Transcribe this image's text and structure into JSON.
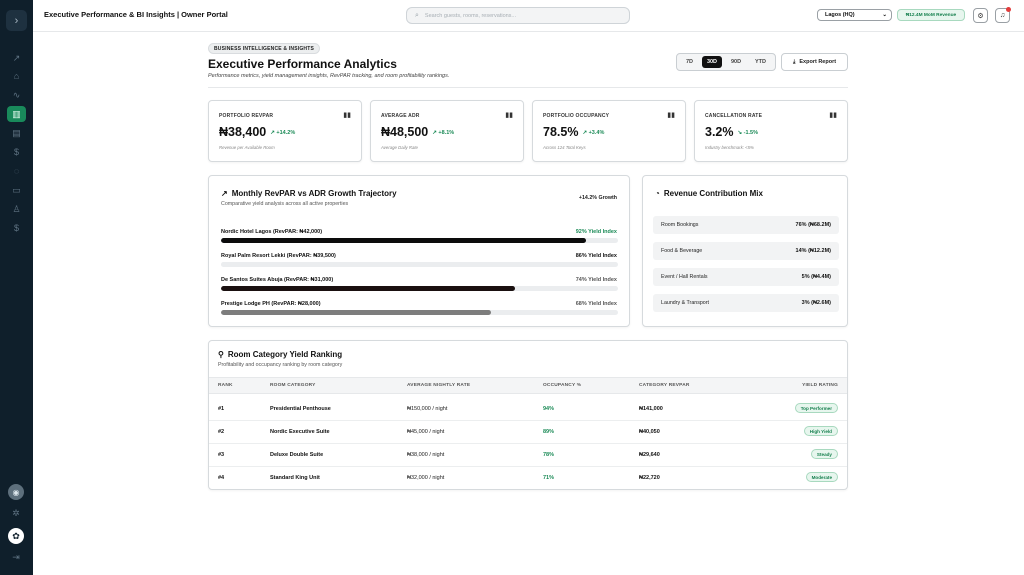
{
  "header": {
    "title": "Executive Performance & BI Insights | Owner Portal",
    "search_placeholder": "Search guests, rooms, reservations...",
    "location": "Lagos (HQ)",
    "revenue_badge": "₦12.4M MoM Revenue"
  },
  "page": {
    "tag": "BUSINESS INTELLIGENCE & INSIGHTS",
    "title": "Executive Performance Analytics",
    "subtitle": "Performance metrics, yield management insights, RevPAR tracking, and room profitability rankings.",
    "periods": [
      "7D",
      "30D",
      "90D",
      "YTD"
    ],
    "active_period": "30D",
    "export_label": "Export Report"
  },
  "kpis": [
    {
      "label": "PORTFOLIO REVPAR",
      "value": "₦38,400",
      "delta": "↗ +14.2%",
      "note": "Revenue per Available Room"
    },
    {
      "label": "AVERAGE ADR",
      "value": "₦48,500",
      "delta": "↗ +8.1%",
      "note": "Average Daily Rate"
    },
    {
      "label": "PORTFOLIO OCCUPANCY",
      "value": "78.5%",
      "delta": "↗ +3.4%",
      "note": "Across 124 Total Keys"
    },
    {
      "label": "CANCELLATION RATE",
      "value": "3.2%",
      "delta": "↘ -1.5%",
      "note": "Industry benchmark: <5%"
    }
  ],
  "trajectory": {
    "title": "Monthly RevPAR vs ADR Growth Trajectory",
    "subtitle": "Comparative yield analysis across all active properties",
    "growth": "+14.2% Growth",
    "rows": [
      {
        "label": "Nordic Hotel Lagos (RevPAR: ₦42,000)",
        "yield": "92% Yield Index",
        "fill": 0.92,
        "color": "#0c0c0c",
        "yield_color": "#1a8a56"
      },
      {
        "label": "Royal Palm Resort Lekki (RevPAR: ₦39,500)",
        "yield": "86% Yield Index",
        "fill": 0.86,
        "color": "#ebedef",
        "yield_color": "#111111"
      },
      {
        "label": "De Santos Suites Abuja (RevPAR: ₦31,000)",
        "yield": "74% Yield Index",
        "fill": 0.74,
        "color": "#1a1010",
        "yield_color": "#555555"
      },
      {
        "label": "Prestige Lodge PH (RevPAR: ₦28,000)",
        "yield": "68% Yield Index",
        "fill": 0.68,
        "color": "#7d7d7d",
        "yield_color": "#555555"
      }
    ]
  },
  "mix": {
    "title": "Revenue Contribution Mix",
    "rows": [
      {
        "label": "Room Bookings",
        "value": "76% (₦68.2M)"
      },
      {
        "label": "Food & Beverage",
        "value": "14% (₦12.2M)"
      },
      {
        "label": "Event / Hall Rentals",
        "value": "5% (₦4.4M)"
      },
      {
        "label": "Laundry & Transport",
        "value": "3% (₦2.6M)"
      }
    ]
  },
  "ranking": {
    "title": "Room Category Yield Ranking",
    "subtitle": "Profitability and occupancy ranking by room category",
    "columns": [
      "RANK",
      "ROOM CATEGORY",
      "AVERAGE NIGHTLY RATE",
      "OCCUPANCY %",
      "CATEGORY REVPAR",
      "YIELD RATING"
    ],
    "rows": [
      {
        "rank": "#1",
        "category": "Presidential Penthouse",
        "rate": "₦150,000 / night",
        "occupancy": "94%",
        "revpar": "₦141,000",
        "rating": "Top Performer"
      },
      {
        "rank": "#2",
        "category": "Nordic Executive Suite",
        "rate": "₦45,000 / night",
        "occupancy": "89%",
        "revpar": "₦40,050",
        "rating": "High Yield"
      },
      {
        "rank": "#3",
        "category": "Deluxe Double Suite",
        "rate": "₦38,000 / night",
        "occupancy": "78%",
        "revpar": "₦29,640",
        "rating": "Steady"
      },
      {
        "rank": "#4",
        "category": "Standard King Unit",
        "rate": "₦32,000 / night",
        "occupancy": "71%",
        "revpar": "₦22,720",
        "rating": "Moderate"
      }
    ]
  },
  "colors": {
    "accent_green": "#1a8a56",
    "sidebar": "#0f1f2b",
    "sidebar_active": "#198a5b"
  }
}
